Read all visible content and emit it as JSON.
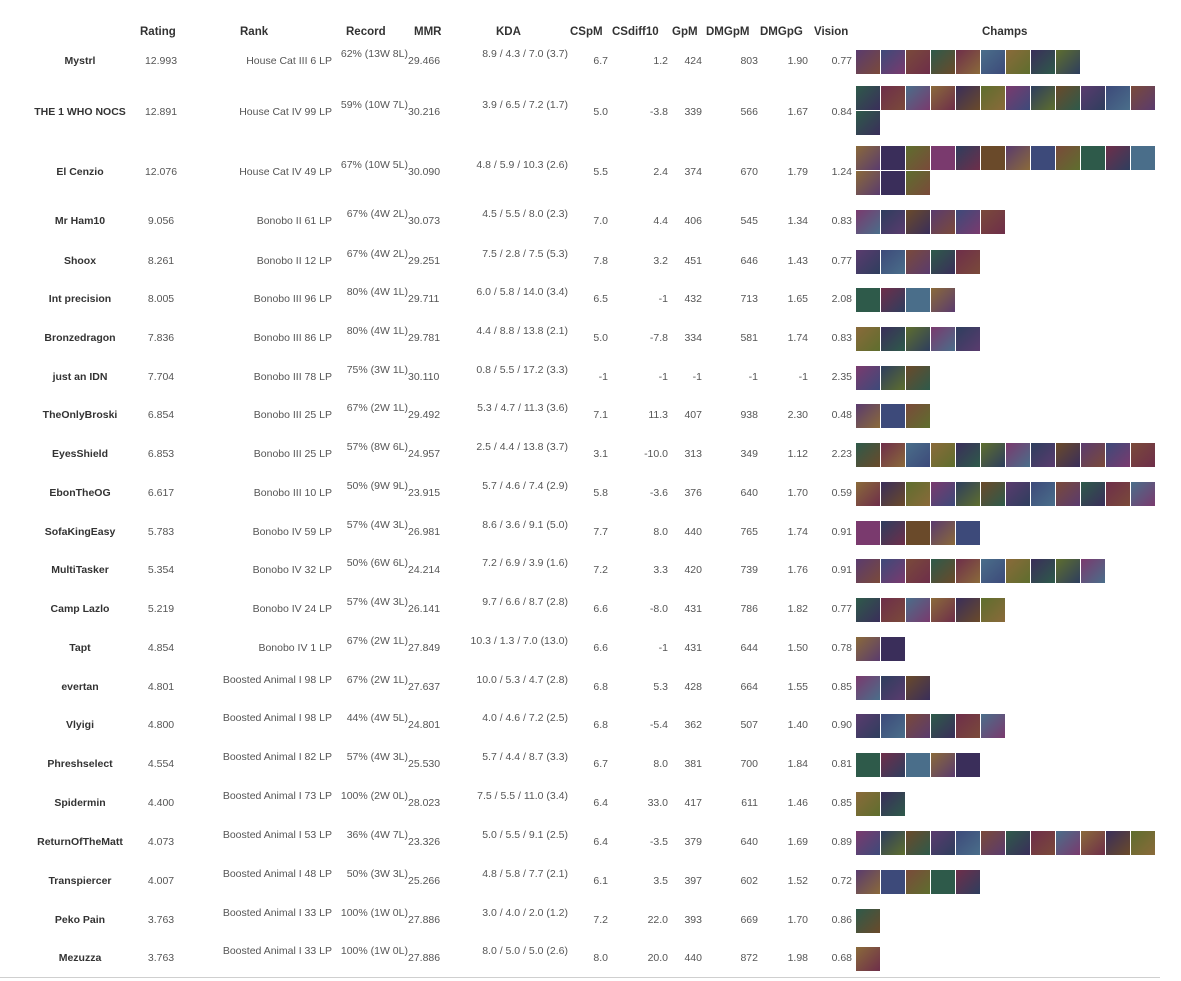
{
  "headers": {
    "rating": "Rating",
    "rank": "Rank",
    "record": "Record",
    "mmr": "MMR",
    "kda": "KDA",
    "cspm": "CSpM",
    "csdiff10": "CSdiff10",
    "gpm": "GpM",
    "dmgpm": "DMGpM",
    "dmgpg": "DMGpG",
    "vision": "Vision",
    "champs": "Champs"
  },
  "palette": [
    "#5a3b6e",
    "#3d4a7a",
    "#7a4a3a",
    "#2e5a4a",
    "#6e2e4a",
    "#4a6e8a",
    "#8a6a3a",
    "#3a2e5a",
    "#5e6e2e",
    "#7a3a6e",
    "#2e3e5e",
    "#6a4a2a"
  ],
  "rows": [
    {
      "name": "Mystrl",
      "rating": "12.993",
      "rank": "House Cat III 6 LP",
      "record": "62% (13W 8L)",
      "mmr": "29.466",
      "kda": "8.9 / 4.3 / 7.0 (3.7)",
      "cspm": "6.7",
      "csdiff10": "1.2",
      "gpm": "424",
      "dmgpm": "803",
      "dmgpg": "1.90",
      "vision": "0.77",
      "champs": 9
    },
    {
      "name": "THE 1 WHO NOCS",
      "rating": "12.891",
      "rank": "House Cat IV 99 LP",
      "record": "59% (10W 7L)",
      "mmr": "30.216",
      "kda": "3.9 / 6.5 / 7.2 (1.7)",
      "cspm": "5.0",
      "csdiff10": "-3.8",
      "gpm": "339",
      "dmgpm": "566",
      "dmgpg": "1.67",
      "vision": "0.84",
      "champs": 13
    },
    {
      "name": "El Cenzio",
      "rating": "12.076",
      "rank": "House Cat IV 49 LP",
      "record": "67% (10W 5L)",
      "mmr": "30.090",
      "kda": "4.8 / 5.9 / 10.3 (2.6)",
      "cspm": "5.5",
      "csdiff10": "2.4",
      "gpm": "374",
      "dmgpm": "670",
      "dmgpg": "1.79",
      "vision": "1.24",
      "champs": 15
    },
    {
      "name": "Mr Ham10",
      "rating": "9.056",
      "rank": "Bonobo II 61 LP",
      "record": "67% (4W 2L)",
      "mmr": "30.073",
      "kda": "4.5 / 5.5 / 8.0 (2.3)",
      "cspm": "7.0",
      "csdiff10": "4.4",
      "gpm": "406",
      "dmgpm": "545",
      "dmgpg": "1.34",
      "vision": "0.83",
      "champs": 6
    },
    {
      "name": "Shoox",
      "rating": "8.261",
      "rank": "Bonobo II 12 LP",
      "record": "67% (4W 2L)",
      "mmr": "29.251",
      "kda": "7.5 / 2.8 / 7.5 (5.3)",
      "cspm": "7.8",
      "csdiff10": "3.2",
      "gpm": "451",
      "dmgpm": "646",
      "dmgpg": "1.43",
      "vision": "0.77",
      "champs": 5
    },
    {
      "name": "Int precision",
      "rating": "8.005",
      "rank": "Bonobo III 96 LP",
      "record": "80% (4W 1L)",
      "mmr": "29.711",
      "kda": "6.0 / 5.8 / 14.0 (3.4)",
      "cspm": "6.5",
      "csdiff10": "-1",
      "gpm": "432",
      "dmgpm": "713",
      "dmgpg": "1.65",
      "vision": "2.08",
      "champs": 4
    },
    {
      "name": "Bronzedragon",
      "rating": "7.836",
      "rank": "Bonobo III 86 LP",
      "record": "80% (4W 1L)",
      "mmr": "29.781",
      "kda": "4.4 / 8.8 / 13.8 (2.1)",
      "cspm": "5.0",
      "csdiff10": "-7.8",
      "gpm": "334",
      "dmgpm": "581",
      "dmgpg": "1.74",
      "vision": "0.83",
      "champs": 5
    },
    {
      "name": "just an IDN",
      "rating": "7.704",
      "rank": "Bonobo III 78 LP",
      "record": "75% (3W 1L)",
      "mmr": "30.110",
      "kda": "0.8 / 5.5 / 17.2 (3.3)",
      "cspm": "-1",
      "csdiff10": "-1",
      "gpm": "-1",
      "dmgpm": "-1",
      "dmgpg": "-1",
      "vision": "2.35",
      "champs": 3
    },
    {
      "name": "TheOnlyBroski",
      "rating": "6.854",
      "rank": "Bonobo III 25 LP",
      "record": "67% (2W 1L)",
      "mmr": "29.492",
      "kda": "5.3 / 4.7 / 11.3 (3.6)",
      "cspm": "7.1",
      "csdiff10": "11.3",
      "gpm": "407",
      "dmgpm": "938",
      "dmgpg": "2.30",
      "vision": "0.48",
      "champs": 3
    },
    {
      "name": "EyesShield",
      "rating": "6.853",
      "rank": "Bonobo III 25 LP",
      "record": "57% (8W 6L)",
      "mmr": "24.957",
      "kda": "2.5 / 4.4 / 13.8 (3.7)",
      "cspm": "3.1",
      "csdiff10": "-10.0",
      "gpm": "313",
      "dmgpm": "349",
      "dmgpg": "1.12",
      "vision": "2.23",
      "champs": 12
    },
    {
      "name": "EbonTheOG",
      "rating": "6.617",
      "rank": "Bonobo III 10 LP",
      "record": "50% (9W 9L)",
      "mmr": "23.915",
      "kda": "5.7 / 4.6 / 7.4 (2.9)",
      "cspm": "5.8",
      "csdiff10": "-3.6",
      "gpm": "376",
      "dmgpm": "640",
      "dmgpg": "1.70",
      "vision": "0.59",
      "champs": 12
    },
    {
      "name": "SofaKingEasy",
      "rating": "5.783",
      "rank": "Bonobo IV 59 LP",
      "record": "57% (4W 3L)",
      "mmr": "26.981",
      "kda": "8.6 / 3.6 / 9.1 (5.0)",
      "cspm": "7.7",
      "csdiff10": "8.0",
      "gpm": "440",
      "dmgpm": "765",
      "dmgpg": "1.74",
      "vision": "0.91",
      "champs": 5
    },
    {
      "name": "MultiTasker",
      "rating": "5.354",
      "rank": "Bonobo IV 32 LP",
      "record": "50% (6W 6L)",
      "mmr": "24.214",
      "kda": "7.2 / 6.9 / 3.9 (1.6)",
      "cspm": "7.2",
      "csdiff10": "3.3",
      "gpm": "420",
      "dmgpm": "739",
      "dmgpg": "1.76",
      "vision": "0.91",
      "champs": 10
    },
    {
      "name": "Camp Lazlo",
      "rating": "5.219",
      "rank": "Bonobo IV 24 LP",
      "record": "57% (4W 3L)",
      "mmr": "26.141",
      "kda": "9.7 / 6.6 / 8.7 (2.8)",
      "cspm": "6.6",
      "csdiff10": "-8.0",
      "gpm": "431",
      "dmgpm": "786",
      "dmgpg": "1.82",
      "vision": "0.77",
      "champs": 6
    },
    {
      "name": "Tapt",
      "rating": "4.854",
      "rank": "Bonobo IV 1 LP",
      "record": "67% (2W 1L)",
      "mmr": "27.849",
      "kda": "10.3 / 1.3 / 7.0 (13.0)",
      "cspm": "6.6",
      "csdiff10": "-1",
      "gpm": "431",
      "dmgpm": "644",
      "dmgpg": "1.50",
      "vision": "0.78",
      "champs": 2
    },
    {
      "name": "evertan",
      "rating": "4.801",
      "rank": "Boosted Animal I 98 LP",
      "record": "67% (2W 1L)",
      "mmr": "27.637",
      "kda": "10.0 / 5.3 / 4.7 (2.8)",
      "cspm": "6.8",
      "csdiff10": "5.3",
      "gpm": "428",
      "dmgpm": "664",
      "dmgpg": "1.55",
      "vision": "0.85",
      "champs": 3
    },
    {
      "name": "Vlyigi",
      "rating": "4.800",
      "rank": "Boosted Animal I 98 LP",
      "record": "44% (4W 5L)",
      "mmr": "24.801",
      "kda": "4.0 / 4.6 / 7.2 (2.5)",
      "cspm": "6.8",
      "csdiff10": "-5.4",
      "gpm": "362",
      "dmgpm": "507",
      "dmgpg": "1.40",
      "vision": "0.90",
      "champs": 6
    },
    {
      "name": "Phreshselect",
      "rating": "4.554",
      "rank": "Boosted Animal I 82 LP",
      "record": "57% (4W 3L)",
      "mmr": "25.530",
      "kda": "5.7 / 4.4 / 8.7 (3.3)",
      "cspm": "6.7",
      "csdiff10": "8.0",
      "gpm": "381",
      "dmgpm": "700",
      "dmgpg": "1.84",
      "vision": "0.81",
      "champs": 5
    },
    {
      "name": "Spidermin",
      "rating": "4.400",
      "rank": "Boosted Animal I 73 LP",
      "record": "100% (2W 0L)",
      "mmr": "28.023",
      "kda": "7.5 / 5.5 / 11.0 (3.4)",
      "cspm": "6.4",
      "csdiff10": "33.0",
      "gpm": "417",
      "dmgpm": "611",
      "dmgpg": "1.46",
      "vision": "0.85",
      "champs": 2
    },
    {
      "name": "ReturnOfTheMatt",
      "rating": "4.073",
      "rank": "Boosted Animal I 53 LP",
      "record": "36% (4W 7L)",
      "mmr": "23.326",
      "kda": "5.0 / 5.5 / 9.1 (2.5)",
      "cspm": "6.4",
      "csdiff10": "-3.5",
      "gpm": "379",
      "dmgpm": "640",
      "dmgpg": "1.69",
      "vision": "0.89",
      "champs": 12
    },
    {
      "name": "Transpiercer",
      "rating": "4.007",
      "rank": "Boosted Animal I 48 LP",
      "record": "50% (3W 3L)",
      "mmr": "25.266",
      "kda": "4.8 / 5.8 / 7.7 (2.1)",
      "cspm": "6.1",
      "csdiff10": "3.5",
      "gpm": "397",
      "dmgpm": "602",
      "dmgpg": "1.52",
      "vision": "0.72",
      "champs": 5
    },
    {
      "name": "Peko Pain",
      "rating": "3.763",
      "rank": "Boosted Animal I 33 LP",
      "record": "100% (1W 0L)",
      "mmr": "27.886",
      "kda": "3.0 / 4.0 / 2.0 (1.2)",
      "cspm": "7.2",
      "csdiff10": "22.0",
      "gpm": "393",
      "dmgpm": "669",
      "dmgpg": "1.70",
      "vision": "0.86",
      "champs": 1
    },
    {
      "name": "Mezuzza",
      "rating": "3.763",
      "rank": "Boosted Animal I 33 LP",
      "record": "100% (1W 0L)",
      "mmr": "27.886",
      "kda": "8.0 / 5.0 / 5.0 (2.6)",
      "cspm": "8.0",
      "csdiff10": "20.0",
      "gpm": "440",
      "dmgpm": "872",
      "dmgpg": "1.98",
      "vision": "0.68",
      "champs": 1
    }
  ]
}
